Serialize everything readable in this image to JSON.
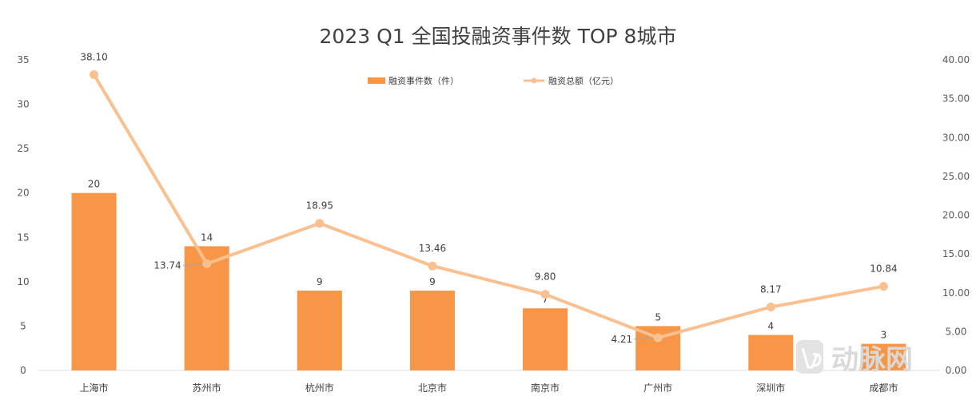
{
  "chart_data": {
    "type": "bar+line",
    "title": "2023 Q1 全国投融资事件数 TOP 8城市",
    "categories": [
      "上海市",
      "苏州市",
      "杭州市",
      "北京市",
      "南京市",
      "广州市",
      "深圳市",
      "成都市"
    ],
    "series": [
      {
        "name": "融资事件数（件）",
        "type": "bar",
        "axis": "left",
        "color": "#f79646",
        "values": [
          20,
          14,
          9,
          9,
          7,
          5,
          4,
          3
        ],
        "labels": [
          "20",
          "14",
          "9",
          "9",
          "7",
          "5",
          "4",
          "3"
        ]
      },
      {
        "name": "融资总额（亿元）",
        "type": "line",
        "axis": "right",
        "color": "#fac090",
        "values": [
          38.1,
          13.74,
          18.95,
          13.46,
          9.8,
          4.21,
          8.17,
          10.84
        ],
        "labels": [
          "38.10",
          "13.74",
          "18.95",
          "13.46",
          "9.80",
          "4.21",
          "8.17",
          "10.84"
        ]
      }
    ],
    "y_left": {
      "min": 0,
      "max": 35,
      "ticks": [
        "0",
        "5",
        "10",
        "15",
        "20",
        "25",
        "30",
        "35"
      ]
    },
    "y_right": {
      "min": 0,
      "max": 40,
      "ticks": [
        "0.00",
        "5.00",
        "10.00",
        "15.00",
        "20.00",
        "25.00",
        "30.00",
        "35.00",
        "40.00"
      ]
    },
    "legend_position": "top-center",
    "grid": false
  },
  "watermark": {
    "logo_text": "动脉网",
    "icon": "vb-logo-icon"
  }
}
